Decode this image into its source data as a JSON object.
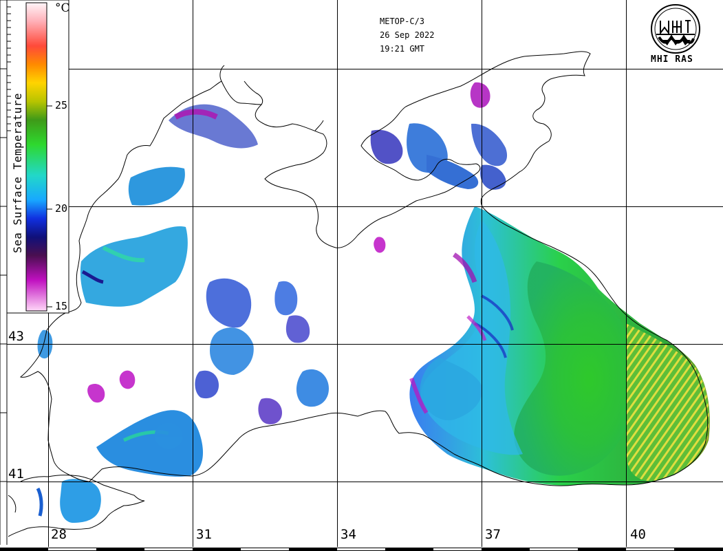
{
  "header": {
    "satellite": "METOP-C/3",
    "date": "26 Sep 2022",
    "time": "19:21 GMT"
  },
  "logo": {
    "text": "MHI RAS",
    "icon": "mhi-ras-emblem-icon"
  },
  "colorbar": {
    "title": "Sea Surface Temperature",
    "unit": "°C",
    "ticks": [
      "25",
      "20",
      "15"
    ]
  },
  "axes": {
    "longitude_labels": [
      "28",
      "31",
      "34",
      "37",
      "40"
    ],
    "latitude_labels": [
      "43",
      "41"
    ]
  },
  "colors": {
    "land_and_cloud": "#ffffff",
    "coastline": "#000000",
    "grid": "#000000"
  }
}
